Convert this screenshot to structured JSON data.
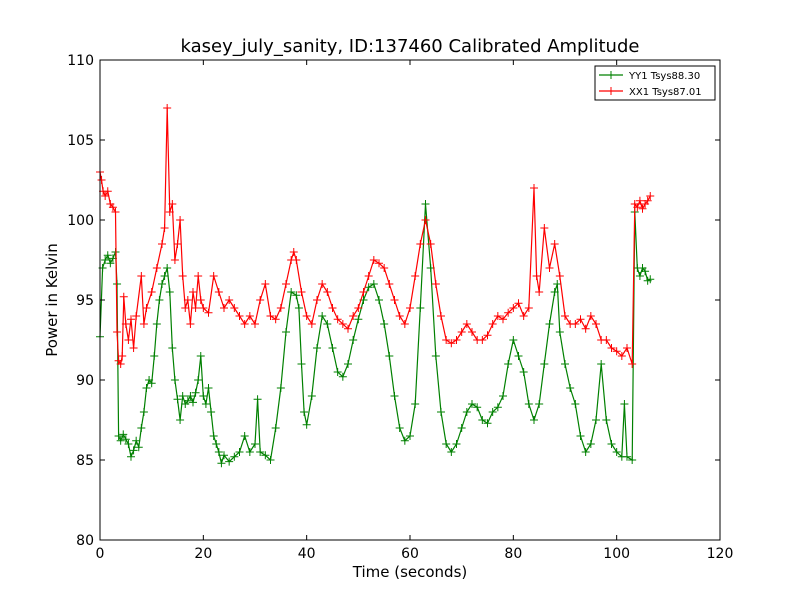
{
  "chart_data": {
    "type": "line",
    "title": "kasey_july_sanity, ID:137460 Calibrated Amplitude",
    "xlabel": "Time (seconds)",
    "ylabel": "Power in Kelvin",
    "xlim": [
      0,
      120
    ],
    "ylim": [
      80,
      110
    ],
    "xticks": [
      "0",
      "20",
      "40",
      "60",
      "80",
      "100",
      "120"
    ],
    "yticks": [
      "80",
      "85",
      "90",
      "95",
      "100",
      "105",
      "110"
    ],
    "grid": false,
    "legend_position": "top-right",
    "marker": "plus",
    "series": [
      {
        "name": "YY1 Tsys88.30",
        "color": "#008000",
        "points": [
          [
            0,
            92.7
          ],
          [
            0.5,
            97.0
          ],
          [
            1,
            97.5
          ],
          [
            1.5,
            97.8
          ],
          [
            2,
            97.3
          ],
          [
            2.5,
            97.6
          ],
          [
            3,
            98.0
          ],
          [
            3.3,
            96.0
          ],
          [
            3.6,
            86.5
          ],
          [
            4,
            86.2
          ],
          [
            4.5,
            86.6
          ],
          [
            5,
            86.3
          ],
          [
            5.5,
            86.0
          ],
          [
            6,
            85.2
          ],
          [
            6.5,
            85.6
          ],
          [
            7,
            86.2
          ],
          [
            7.5,
            85.8
          ],
          [
            8,
            87.0
          ],
          [
            8.5,
            88.0
          ],
          [
            9,
            89.5
          ],
          [
            9.5,
            90.0
          ],
          [
            10,
            89.8
          ],
          [
            10.5,
            91.5
          ],
          [
            11,
            93.5
          ],
          [
            11.5,
            95.0
          ],
          [
            12,
            96.0
          ],
          [
            12.5,
            96.5
          ],
          [
            13,
            97.0
          ],
          [
            13.5,
            95.5
          ],
          [
            14,
            92.0
          ],
          [
            14.5,
            90.0
          ],
          [
            15,
            88.8
          ],
          [
            15.5,
            87.5
          ],
          [
            16,
            89.0
          ],
          [
            16.5,
            88.5
          ],
          [
            17,
            88.7
          ],
          [
            17.5,
            89.0
          ],
          [
            18,
            88.6
          ],
          [
            18.5,
            89.2
          ],
          [
            19,
            90.0
          ],
          [
            19.5,
            91.5
          ],
          [
            20,
            89.0
          ],
          [
            20.5,
            88.5
          ],
          [
            21,
            89.5
          ],
          [
            21.5,
            88.0
          ],
          [
            22,
            86.5
          ],
          [
            22.5,
            86.0
          ],
          [
            23,
            85.5
          ],
          [
            23.5,
            84.8
          ],
          [
            24,
            85.3
          ],
          [
            25,
            84.9
          ],
          [
            26,
            85.2
          ],
          [
            27,
            85.5
          ],
          [
            28,
            86.5
          ],
          [
            29,
            85.5
          ],
          [
            30,
            86.0
          ],
          [
            30.5,
            88.8
          ],
          [
            31,
            85.5
          ],
          [
            32,
            85.3
          ],
          [
            33,
            85.0
          ],
          [
            34,
            87.0
          ],
          [
            35,
            89.5
          ],
          [
            36,
            93.0
          ],
          [
            37,
            95.5
          ],
          [
            38,
            95.3
          ],
          [
            38.5,
            94.5
          ],
          [
            39,
            91.0
          ],
          [
            39.5,
            88.0
          ],
          [
            40,
            87.2
          ],
          [
            41,
            89.0
          ],
          [
            42,
            92.0
          ],
          [
            43,
            94.0
          ],
          [
            44,
            93.5
          ],
          [
            45,
            92.0
          ],
          [
            46,
            90.5
          ],
          [
            47,
            90.2
          ],
          [
            48,
            91.0
          ],
          [
            49,
            92.5
          ],
          [
            50,
            93.8
          ],
          [
            51,
            95.0
          ],
          [
            52,
            95.8
          ],
          [
            53,
            96.0
          ],
          [
            54,
            95.0
          ],
          [
            55,
            93.5
          ],
          [
            56,
            91.5
          ],
          [
            57,
            89.0
          ],
          [
            58,
            87.0
          ],
          [
            59,
            86.2
          ],
          [
            60,
            86.5
          ],
          [
            61,
            88.5
          ],
          [
            62,
            94.5
          ],
          [
            63,
            101.0
          ],
          [
            64,
            97.0
          ],
          [
            65,
            91.5
          ],
          [
            66,
            88.0
          ],
          [
            67,
            86.0
          ],
          [
            68,
            85.5
          ],
          [
            69,
            86.0
          ],
          [
            70,
            87.0
          ],
          [
            71,
            88.0
          ],
          [
            72,
            88.5
          ],
          [
            73,
            88.3
          ],
          [
            74,
            87.5
          ],
          [
            75,
            87.3
          ],
          [
            76,
            88.0
          ],
          [
            77,
            88.3
          ],
          [
            78,
            89.0
          ],
          [
            79,
            91.0
          ],
          [
            80,
            92.5
          ],
          [
            81,
            91.5
          ],
          [
            82,
            90.5
          ],
          [
            83,
            88.5
          ],
          [
            84,
            87.5
          ],
          [
            85,
            88.5
          ],
          [
            86,
            91.0
          ],
          [
            87,
            93.5
          ],
          [
            88,
            95.5
          ],
          [
            88.5,
            96.0
          ],
          [
            89,
            93.0
          ],
          [
            90,
            91.0
          ],
          [
            91,
            89.5
          ],
          [
            92,
            88.5
          ],
          [
            93,
            86.5
          ],
          [
            94,
            85.5
          ],
          [
            95,
            86.0
          ],
          [
            96,
            87.5
          ],
          [
            97,
            91.0
          ],
          [
            98,
            87.5
          ],
          [
            99,
            86.0
          ],
          [
            100,
            85.5
          ],
          [
            101,
            85.2
          ],
          [
            101.5,
            88.5
          ],
          [
            102,
            85.2
          ],
          [
            103,
            85.0
          ],
          [
            103.5,
            100.5
          ],
          [
            104,
            97.0
          ],
          [
            104.5,
            96.5
          ],
          [
            105,
            97.0
          ],
          [
            105.5,
            96.8
          ],
          [
            106,
            96.2
          ],
          [
            106.5,
            96.3
          ]
        ]
      },
      {
        "name": "XX1 Tsys87.01",
        "color": "#ff0000",
        "points": [
          [
            0,
            103.0
          ],
          [
            0.3,
            102.5
          ],
          [
            0.6,
            101.8
          ],
          [
            1,
            101.5
          ],
          [
            1.5,
            101.8
          ],
          [
            2,
            101.0
          ],
          [
            2.5,
            100.8
          ],
          [
            3,
            100.5
          ],
          [
            3.3,
            93.0
          ],
          [
            3.6,
            91.2
          ],
          [
            4,
            91.0
          ],
          [
            4.3,
            91.5
          ],
          [
            4.6,
            95.2
          ],
          [
            5,
            93.5
          ],
          [
            5.5,
            92.5
          ],
          [
            6,
            93.8
          ],
          [
            6.5,
            92.0
          ],
          [
            7,
            94.0
          ],
          [
            8,
            96.5
          ],
          [
            8.5,
            93.5
          ],
          [
            9,
            94.5
          ],
          [
            10,
            95.5
          ],
          [
            11,
            97.0
          ],
          [
            12,
            98.5
          ],
          [
            12.5,
            99.5
          ],
          [
            13,
            107.0
          ],
          [
            13.5,
            100.5
          ],
          [
            14,
            101.0
          ],
          [
            14.5,
            97.5
          ],
          [
            15,
            98.5
          ],
          [
            15.5,
            100.0
          ],
          [
            16,
            96.5
          ],
          [
            16.5,
            94.5
          ],
          [
            17,
            95.0
          ],
          [
            17.5,
            93.5
          ],
          [
            18,
            95.5
          ],
          [
            18.5,
            94.5
          ],
          [
            19,
            96.5
          ],
          [
            19.5,
            95.0
          ],
          [
            20,
            94.5
          ],
          [
            21,
            94.2
          ],
          [
            22,
            96.5
          ],
          [
            23,
            95.5
          ],
          [
            24,
            94.5
          ],
          [
            25,
            95.0
          ],
          [
            26,
            94.5
          ],
          [
            27,
            94.0
          ],
          [
            28,
            93.5
          ],
          [
            29,
            94.0
          ],
          [
            30,
            93.5
          ],
          [
            31,
            95.0
          ],
          [
            32,
            96.0
          ],
          [
            33,
            94.0
          ],
          [
            34,
            93.8
          ],
          [
            35,
            94.5
          ],
          [
            36,
            96.0
          ],
          [
            37,
            97.5
          ],
          [
            37.5,
            98.0
          ],
          [
            38,
            97.5
          ],
          [
            39,
            95.5
          ],
          [
            40,
            94.0
          ],
          [
            41,
            93.5
          ],
          [
            42,
            95.0
          ],
          [
            43,
            96.0
          ],
          [
            44,
            95.5
          ],
          [
            45,
            94.5
          ],
          [
            46,
            93.8
          ],
          [
            47,
            93.5
          ],
          [
            48,
            93.2
          ],
          [
            49,
            94.0
          ],
          [
            50,
            94.5
          ],
          [
            51,
            95.5
          ],
          [
            52,
            96.5
          ],
          [
            53,
            97.5
          ],
          [
            54,
            97.3
          ],
          [
            55,
            97.0
          ],
          [
            56,
            96.0
          ],
          [
            57,
            95.0
          ],
          [
            58,
            94.0
          ],
          [
            59,
            93.5
          ],
          [
            60,
            94.5
          ],
          [
            61,
            96.5
          ],
          [
            62,
            98.5
          ],
          [
            63,
            100.0
          ],
          [
            64,
            98.5
          ],
          [
            65,
            96.0
          ],
          [
            66,
            94.0
          ],
          [
            67,
            92.5
          ],
          [
            68,
            92.3
          ],
          [
            69,
            92.5
          ],
          [
            70,
            93.0
          ],
          [
            71,
            93.5
          ],
          [
            72,
            93.0
          ],
          [
            73,
            92.5
          ],
          [
            74,
            92.5
          ],
          [
            75,
            92.8
          ],
          [
            76,
            93.5
          ],
          [
            77,
            94.0
          ],
          [
            78,
            93.8
          ],
          [
            79,
            94.2
          ],
          [
            80,
            94.5
          ],
          [
            81,
            94.8
          ],
          [
            82,
            94.0
          ],
          [
            83,
            94.5
          ],
          [
            84,
            102.0
          ],
          [
            84.5,
            96.5
          ],
          [
            85,
            95.5
          ],
          [
            86,
            99.5
          ],
          [
            87,
            97.0
          ],
          [
            88,
            98.5
          ],
          [
            89,
            96.5
          ],
          [
            90,
            94.0
          ],
          [
            91,
            93.5
          ],
          [
            92,
            93.5
          ],
          [
            93,
            93.8
          ],
          [
            94,
            93.2
          ],
          [
            95,
            94.0
          ],
          [
            96,
            93.5
          ],
          [
            97,
            92.5
          ],
          [
            98,
            92.5
          ],
          [
            99,
            92.0
          ],
          [
            100,
            91.8
          ],
          [
            101,
            91.5
          ],
          [
            102,
            92.0
          ],
          [
            103,
            91.0
          ],
          [
            103.5,
            101.0
          ],
          [
            104,
            100.8
          ],
          [
            104.5,
            101.2
          ],
          [
            105,
            100.7
          ],
          [
            105.5,
            101.0
          ],
          [
            106,
            101.2
          ],
          [
            106.5,
            101.5
          ]
        ]
      }
    ]
  }
}
